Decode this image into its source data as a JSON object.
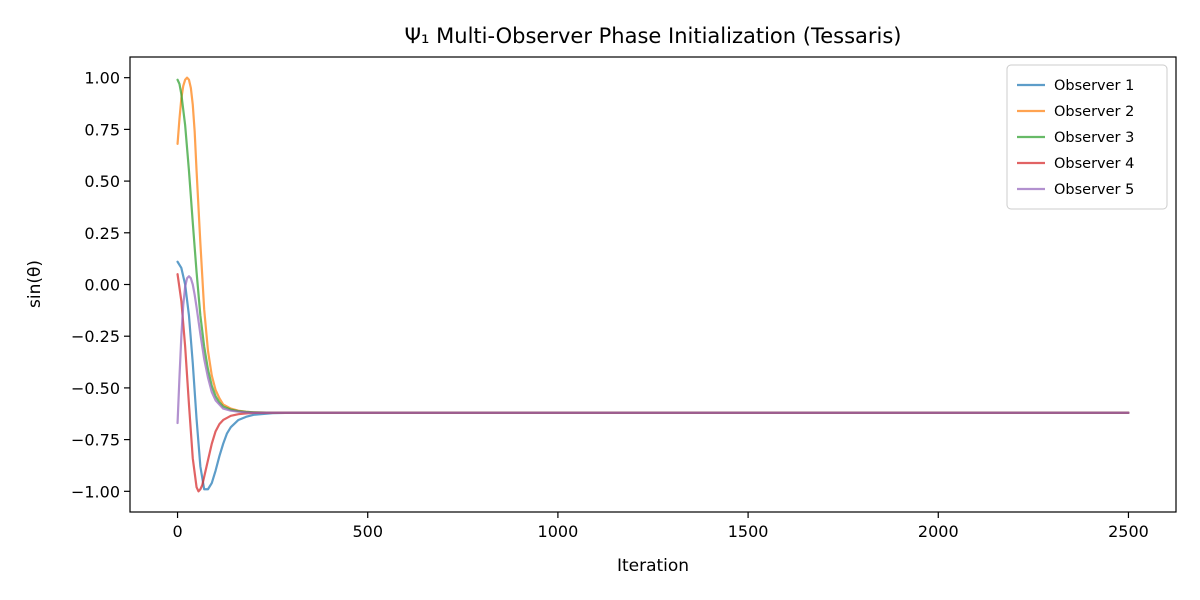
{
  "chart_data": {
    "type": "line",
    "title": "Ψ₁ Multi-Observer Phase Initialization (Tessaris)",
    "xlabel": "Iteration",
    "ylabel": "sin(θ)",
    "xlim": [
      -125,
      2625
    ],
    "ylim": [
      -1.1,
      1.1
    ],
    "xticks": [
      0,
      500,
      1000,
      1500,
      2000,
      2500
    ],
    "xtick_labels": [
      "0",
      "500",
      "1000",
      "1500",
      "2000",
      "2500"
    ],
    "yticks": [
      1.0,
      0.75,
      0.5,
      0.25,
      0.0,
      -0.25,
      -0.5,
      -0.75,
      -1.0
    ],
    "ytick_labels": [
      "1.00",
      "0.75",
      "0.50",
      "0.25",
      "0.00",
      "−0.25",
      "−0.50",
      "−0.75",
      "−1.00"
    ],
    "grid": false,
    "legend_position": "top-right",
    "series": [
      {
        "name": "Observer 1",
        "color": "#1f77b4",
        "x": [
          0,
          10,
          20,
          30,
          40,
          50,
          60,
          70,
          80,
          90,
          100,
          110,
          120,
          130,
          140,
          160,
          180,
          200,
          250,
          300,
          500,
          1000,
          1500,
          2000,
          2500
        ],
        "y": [
          0.11,
          0.08,
          0.0,
          -0.15,
          -0.38,
          -0.65,
          -0.88,
          -0.99,
          -0.99,
          -0.96,
          -0.9,
          -0.83,
          -0.77,
          -0.72,
          -0.69,
          -0.655,
          -0.64,
          -0.63,
          -0.622,
          -0.62,
          -0.62,
          -0.62,
          -0.62,
          -0.62,
          -0.62
        ]
      },
      {
        "name": "Observer 2",
        "color": "#ff7f0e",
        "x": [
          0,
          5,
          10,
          15,
          20,
          25,
          30,
          35,
          40,
          45,
          50,
          60,
          70,
          80,
          90,
          100,
          110,
          120,
          140,
          160,
          180,
          200,
          250,
          300,
          500,
          1000,
          1500,
          2000,
          2500
        ],
        "y": [
          0.68,
          0.8,
          0.9,
          0.96,
          0.99,
          1.0,
          0.99,
          0.95,
          0.87,
          0.74,
          0.55,
          0.2,
          -0.12,
          -0.32,
          -0.44,
          -0.51,
          -0.55,
          -0.58,
          -0.6,
          -0.61,
          -0.615,
          -0.618,
          -0.62,
          -0.62,
          -0.62,
          -0.62,
          -0.62,
          -0.62,
          -0.62
        ]
      },
      {
        "name": "Observer 3",
        "color": "#2ca02c",
        "x": [
          0,
          5,
          10,
          20,
          30,
          40,
          50,
          60,
          70,
          80,
          90,
          100,
          110,
          120,
          140,
          160,
          180,
          200,
          250,
          300,
          500,
          1000,
          1500,
          2000,
          2500
        ],
        "y": [
          0.99,
          0.97,
          0.92,
          0.77,
          0.55,
          0.3,
          0.06,
          -0.15,
          -0.3,
          -0.41,
          -0.49,
          -0.54,
          -0.57,
          -0.59,
          -0.605,
          -0.612,
          -0.616,
          -0.618,
          -0.62,
          -0.62,
          -0.62,
          -0.62,
          -0.62,
          -0.62,
          -0.62
        ]
      },
      {
        "name": "Observer 4",
        "color": "#d62728",
        "x": [
          0,
          10,
          20,
          30,
          40,
          50,
          55,
          60,
          65,
          70,
          80,
          90,
          100,
          110,
          120,
          140,
          160,
          180,
          200,
          250,
          300,
          500,
          1000,
          1500,
          2000,
          2500
        ],
        "y": [
          0.05,
          -0.08,
          -0.3,
          -0.58,
          -0.84,
          -0.98,
          -1.0,
          -0.99,
          -0.97,
          -0.93,
          -0.85,
          -0.77,
          -0.71,
          -0.675,
          -0.655,
          -0.635,
          -0.627,
          -0.623,
          -0.621,
          -0.62,
          -0.62,
          -0.62,
          -0.62,
          -0.62,
          -0.62,
          -0.62
        ]
      },
      {
        "name": "Observer 5",
        "color": "#9467bd",
        "x": [
          0,
          5,
          10,
          15,
          20,
          25,
          30,
          35,
          40,
          45,
          50,
          60,
          70,
          80,
          90,
          100,
          120,
          140,
          160,
          180,
          200,
          250,
          300,
          500,
          1000,
          1500,
          2000,
          2500
        ],
        "y": [
          -0.67,
          -0.45,
          -0.25,
          -0.1,
          -0.01,
          0.03,
          0.04,
          0.03,
          0.0,
          -0.05,
          -0.11,
          -0.24,
          -0.36,
          -0.45,
          -0.52,
          -0.56,
          -0.6,
          -0.61,
          -0.615,
          -0.618,
          -0.62,
          -0.62,
          -0.62,
          -0.62,
          -0.62,
          -0.62,
          -0.62,
          -0.62
        ]
      }
    ]
  }
}
